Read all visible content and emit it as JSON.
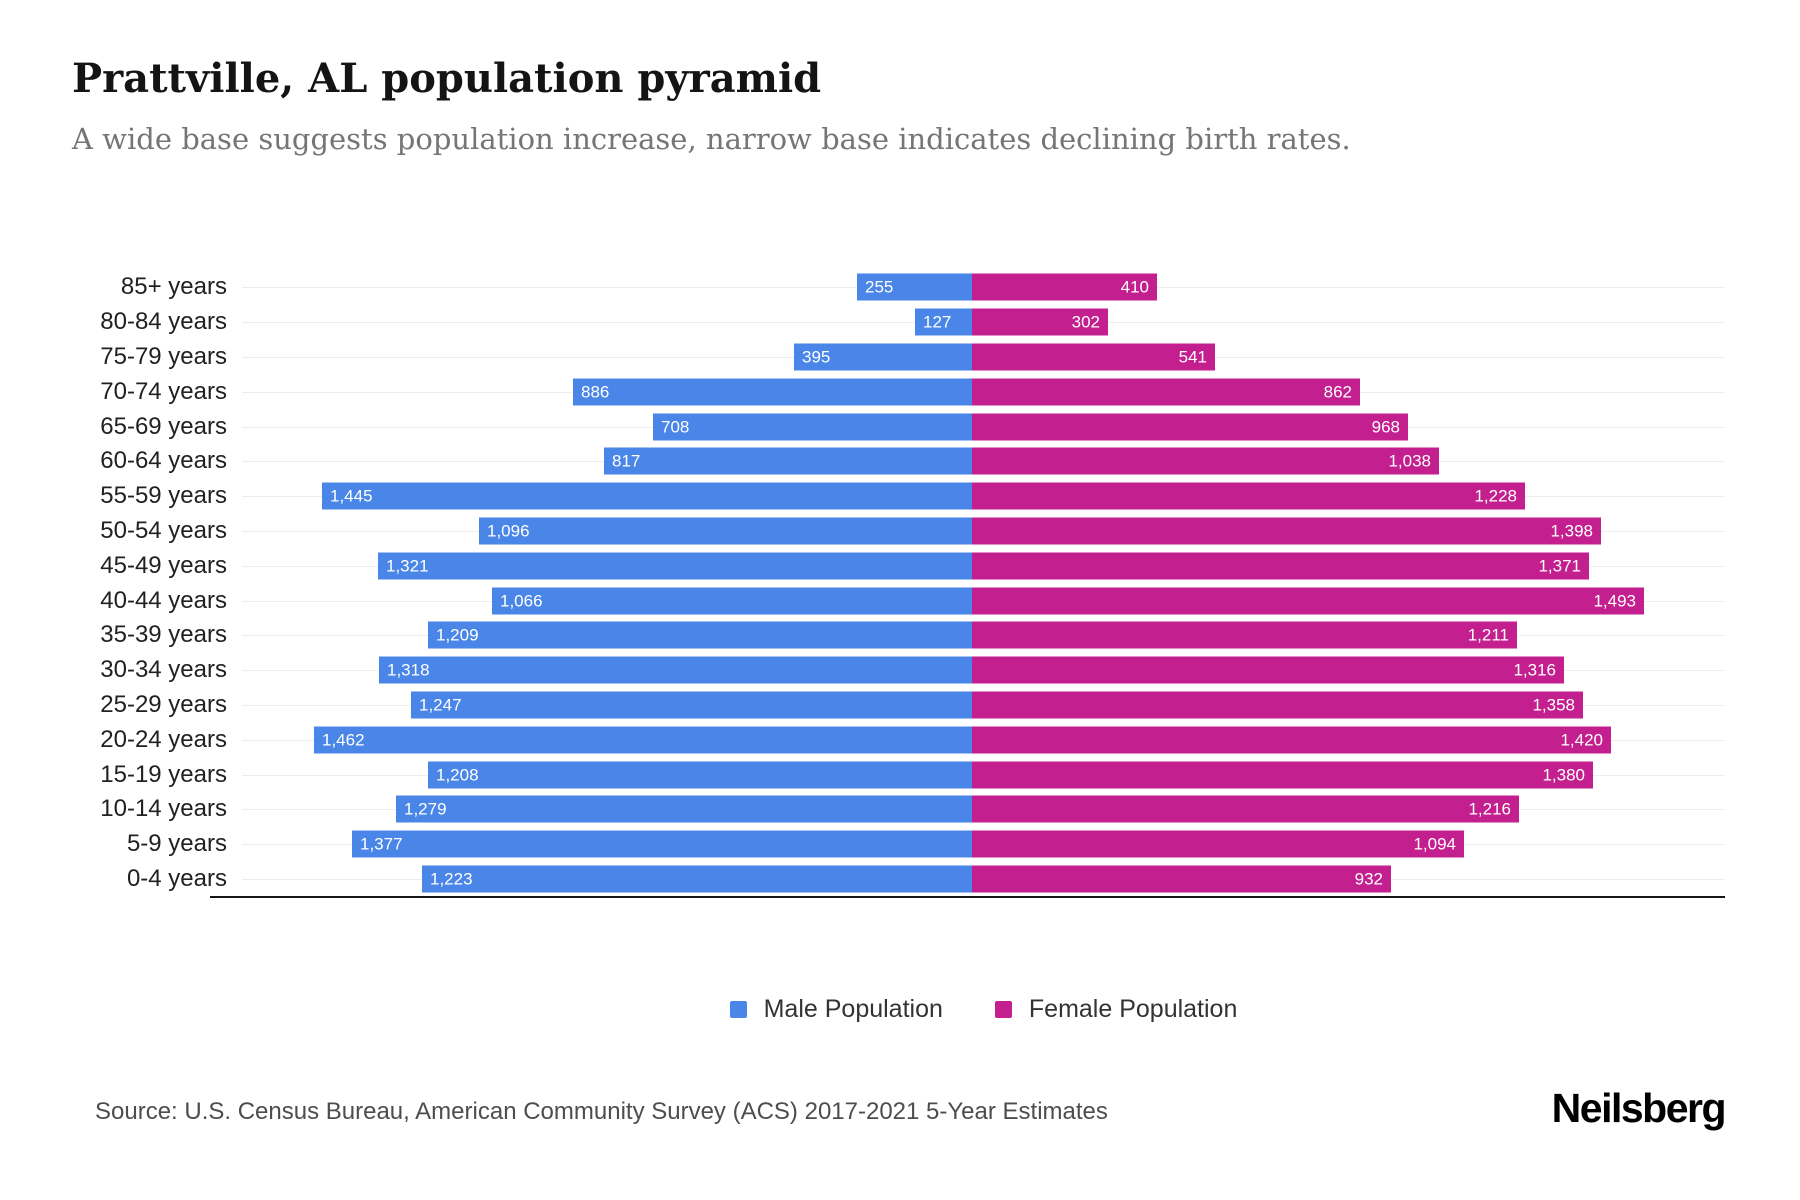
{
  "header": {
    "title": "Prattville, AL population pyramid",
    "subtitle": "A wide base suggests population increase, narrow base indicates declining birth rates."
  },
  "legend": {
    "male_label": "Male Population",
    "female_label": "Female Population"
  },
  "footer": {
    "source": "Source: U.S. Census Bureau, American Community Survey (ACS) 2017-2021 5-Year Estimates",
    "brand": "Neilsberg"
  },
  "colors": {
    "male": "#4a86e8",
    "female": "#c31f8e",
    "gridline": "#ededed",
    "axis": "#161616"
  },
  "chart_data": {
    "type": "bar",
    "variant": "population-pyramid",
    "title": "Prattville, AL population pyramid",
    "categories": [
      "85+ years",
      "80-84 years",
      "75-79 years",
      "70-74 years",
      "65-69 years",
      "60-64 years",
      "55-59 years",
      "50-54 years",
      "45-49 years",
      "40-44 years",
      "35-39 years",
      "30-34 years",
      "25-29 years",
      "20-24 years",
      "15-19 years",
      "10-14 years",
      "5-9 years",
      "0-4 years"
    ],
    "series": [
      {
        "name": "Male Population",
        "side": "left",
        "color": "#4a86e8",
        "values": [
          255,
          127,
          395,
          886,
          708,
          817,
          1445,
          1096,
          1321,
          1066,
          1209,
          1318,
          1247,
          1462,
          1208,
          1279,
          1377,
          1223
        ]
      },
      {
        "name": "Female Population",
        "side": "right",
        "color": "#c31f8e",
        "values": [
          410,
          302,
          541,
          862,
          968,
          1038,
          1228,
          1398,
          1371,
          1493,
          1211,
          1316,
          1358,
          1420,
          1380,
          1216,
          1094,
          932
        ]
      }
    ],
    "value_labels": "inside-bar-ends, thousands comma format",
    "axis": {
      "half_max": 1650,
      "ticks_visible": false,
      "gridlines": true
    },
    "legend_position": "bottom-center"
  }
}
